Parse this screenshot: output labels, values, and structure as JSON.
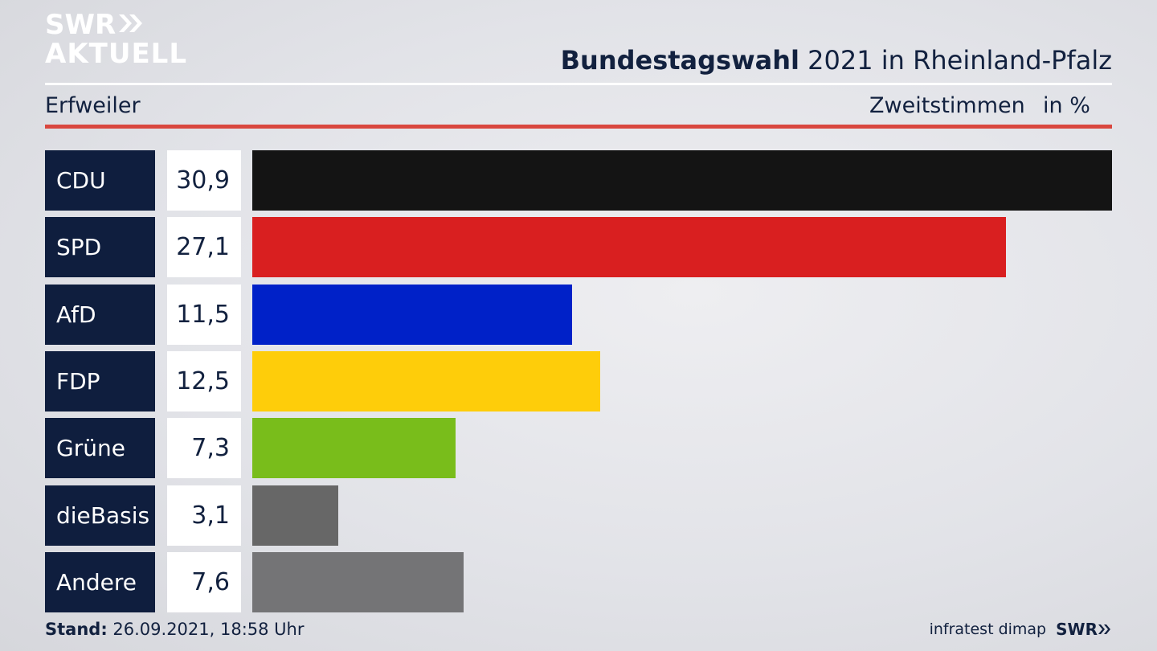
{
  "brand": {
    "line1": "SWR",
    "line2": "AKTUELL"
  },
  "header": {
    "title_bold": "Bundestagswahl",
    "title_rest": " 2021 in Rheinland-Pfalz",
    "region": "Erfweiler",
    "vote_type": "Zweitstimmen",
    "unit": "in %"
  },
  "chart_data": {
    "type": "bar",
    "orientation": "horizontal",
    "title": "Bundestagswahl 2021 in Rheinland-Pfalz",
    "subtitle": "Erfweiler",
    "xlabel": "Zweitstimmen in %",
    "categories": [
      "CDU",
      "SPD",
      "AfD",
      "FDP",
      "Grüne",
      "dieBasis",
      "Andere"
    ],
    "values": [
      30.9,
      27.1,
      11.5,
      12.5,
      7.3,
      3.1,
      7.6
    ],
    "value_labels": [
      "30,9",
      "27,1",
      "11,5",
      "12,5",
      "7,3",
      "3,1",
      "7,6"
    ],
    "colors": [
      "#141414",
      "#d91f20",
      "#0021c8",
      "#fecd0a",
      "#79bd1b",
      "#676767",
      "#747476"
    ],
    "xlim": [
      0,
      30.9
    ],
    "grid": false,
    "legend": "none"
  },
  "footer": {
    "stand_label": "Stand:",
    "stand_value": " 26.09.2021, 18:58 Uhr",
    "source": "infratest dimap",
    "brand": "SWR"
  }
}
